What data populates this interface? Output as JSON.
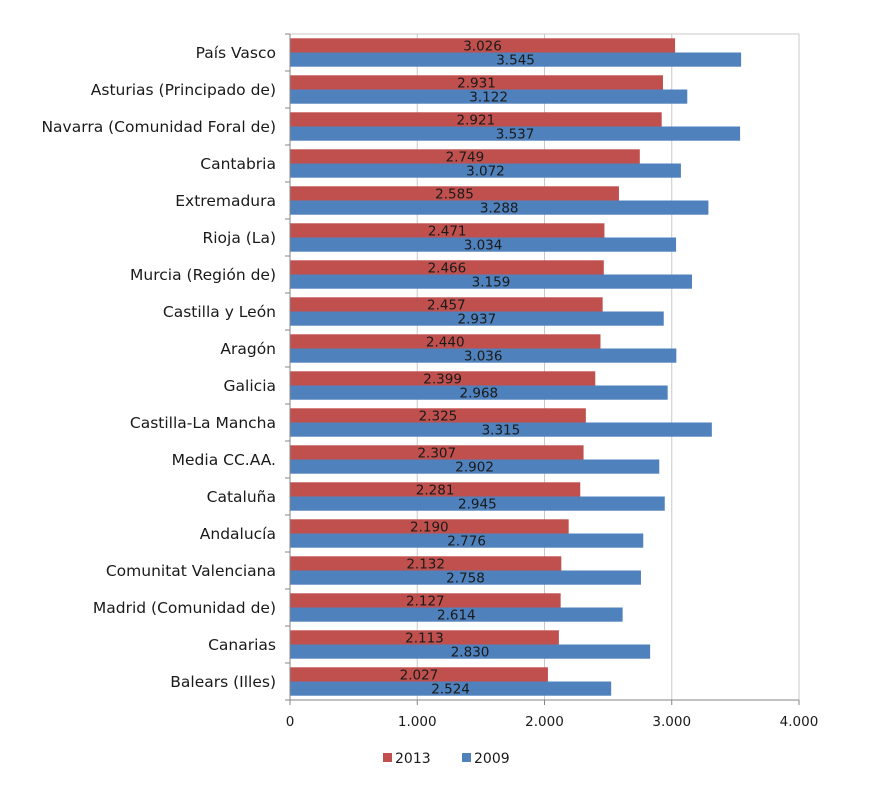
{
  "chart_data": {
    "type": "bar",
    "orientation": "horizontal",
    "categories": [
      "País Vasco",
      "Asturias (Principado de)",
      "Navarra (Comunidad Foral de)",
      "Cantabria",
      "Extremadura",
      "Rioja (La)",
      "Murcia (Región de)",
      "Castilla y León",
      "Aragón",
      "Galicia",
      "Castilla-La Mancha",
      "Media CC.AA.",
      "Cataluña",
      "Andalucía",
      "Comunitat Valenciana",
      "Madrid (Comunidad de)",
      "Canarias",
      "Balears (Illes)"
    ],
    "series": [
      {
        "name": "2013",
        "color": "#c0504d",
        "values": [
          3026,
          2931,
          2921,
          2749,
          2585,
          2471,
          2466,
          2457,
          2440,
          2399,
          2325,
          2307,
          2281,
          2190,
          2132,
          2127,
          2113,
          2027
        ],
        "labels": [
          "3.026",
          "2.931",
          "2.921",
          "2.749",
          "2.585",
          "2.471",
          "2.466",
          "2.457",
          "2.440",
          "2.399",
          "2.325",
          "2.307",
          "2.281",
          "2.190",
          "2.132",
          "2.127",
          "2.113",
          "2.027"
        ]
      },
      {
        "name": "2009",
        "color": "#4f81bd",
        "values": [
          3545,
          3122,
          3537,
          3072,
          3288,
          3034,
          3159,
          2937,
          3036,
          2968,
          3315,
          2902,
          2945,
          2776,
          2758,
          2614,
          2830,
          2524
        ],
        "labels": [
          "3.545",
          "3.122",
          "3.537",
          "3.072",
          "3.288",
          "3.034",
          "3.159",
          "2.937",
          "3.036",
          "2.968",
          "3.315",
          "2.902",
          "2.945",
          "2.776",
          "2.758",
          "2.614",
          "2.830",
          "2.524"
        ]
      }
    ],
    "xlim": [
      0,
      4000
    ],
    "xticks": [
      0,
      1000,
      2000,
      3000,
      4000
    ],
    "xtick_labels": [
      "0",
      "1.000",
      "2.000",
      "3.000",
      "4.000"
    ],
    "grid": "vertical",
    "legend": "bottom"
  }
}
